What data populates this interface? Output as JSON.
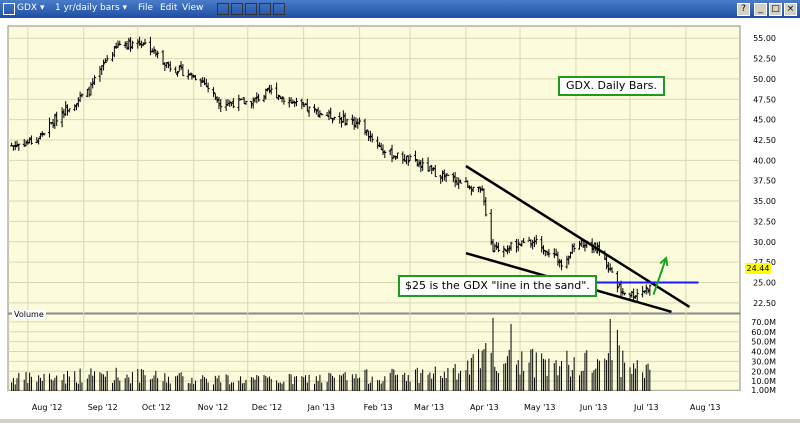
{
  "toolbar": {
    "symbol": "GDX",
    "timeframe": "1 yr/daily bars",
    "menu": [
      "File",
      "Edit",
      "View"
    ]
  },
  "annotations": {
    "title_box": "GDX.  Daily Bars.",
    "note_box": "$25 is the GDX \"line in the sand\"."
  },
  "volume_label": "Volume",
  "price_badge": "24.44",
  "colors": {
    "bg": "#fcfcdc",
    "bars": "#000000",
    "hline": "#1a1aff",
    "arrow": "#17a31e",
    "badge": "#ffff00"
  },
  "chart_data": {
    "type": "ohlc",
    "price_axis": {
      "min": 21.25,
      "max": 56.5,
      "ticks": [
        22.5,
        25.0,
        27.5,
        30.0,
        32.5,
        35.0,
        37.5,
        40.0,
        42.5,
        45.0,
        47.5,
        50.0,
        52.5,
        55.0
      ],
      "tick_labels": [
        "22.50",
        "25.00",
        "27.50",
        "30.00",
        "32.50",
        "35.00",
        "37.50",
        "40.00",
        "42.50",
        "45.00",
        "47.50",
        "50.00",
        "52.50",
        "55.00"
      ]
    },
    "volume_axis": {
      "min": 0,
      "max": 78,
      "ticks": [
        1,
        10,
        20,
        30,
        40,
        50,
        60,
        70
      ],
      "tick_labels": [
        "1.00M",
        "10.0M",
        "20.0M",
        "30.0M",
        "40.0M",
        "50.0M",
        "60.0M",
        "70.0M"
      ]
    },
    "x_axis": {
      "start": "2012-07-21",
      "end": "2013-08-31",
      "labels": [
        {
          "date": "2012-08-01",
          "text": "Aug '12"
        },
        {
          "date": "2012-09-01",
          "text": "Sep '12"
        },
        {
          "date": "2012-10-01",
          "text": "Oct '12"
        },
        {
          "date": "2012-11-01",
          "text": "Nov '12"
        },
        {
          "date": "2012-12-01",
          "text": "Dec '12"
        },
        {
          "date": "2013-01-01",
          "text": "Jan '13"
        },
        {
          "date": "2013-02-01",
          "text": "Feb '13"
        },
        {
          "date": "2013-03-01",
          "text": "Mar '13"
        },
        {
          "date": "2013-04-01",
          "text": "Apr '13"
        },
        {
          "date": "2013-05-01",
          "text": "May '13"
        },
        {
          "date": "2013-06-01",
          "text": "Jun '13"
        },
        {
          "date": "2013-07-01",
          "text": "Jul '13"
        },
        {
          "date": "2013-08-01",
          "text": "Aug '13"
        }
      ]
    },
    "price_waypoints": [
      [
        "2012-07-23",
        41.8
      ],
      [
        "2012-08-06",
        42.5
      ],
      [
        "2012-08-20",
        46.0
      ],
      [
        "2012-09-04",
        48.5
      ],
      [
        "2012-09-14",
        52.5
      ],
      [
        "2012-09-21",
        54.3
      ],
      [
        "2012-10-04",
        54.5
      ],
      [
        "2012-10-19",
        51.5
      ],
      [
        "2012-11-05",
        50.0
      ],
      [
        "2012-11-16",
        47.0
      ],
      [
        "2012-12-03",
        47.2
      ],
      [
        "2012-12-14",
        48.5
      ],
      [
        "2012-12-31",
        46.5
      ],
      [
        "2013-01-15",
        45.5
      ],
      [
        "2013-02-01",
        44.5
      ],
      [
        "2013-02-15",
        41.0
      ],
      [
        "2013-03-01",
        40.0
      ],
      [
        "2013-03-15",
        38.5
      ],
      [
        "2013-04-02",
        37.0
      ],
      [
        "2013-04-10",
        36.0
      ],
      [
        "2013-04-16",
        29.0
      ],
      [
        "2013-04-26",
        29.5
      ],
      [
        "2013-05-10",
        30.0
      ],
      [
        "2013-05-24",
        27.5
      ],
      [
        "2013-06-03",
        30.0
      ],
      [
        "2013-06-14",
        29.0
      ],
      [
        "2013-06-26",
        24.0
      ],
      [
        "2013-07-03",
        23.5
      ],
      [
        "2013-07-12",
        24.4
      ]
    ],
    "volume_waypoints": [
      [
        "2012-07-23",
        14
      ],
      [
        "2012-09-14",
        20
      ],
      [
        "2012-10-15",
        16
      ],
      [
        "2012-12-15",
        13
      ],
      [
        "2013-02-15",
        18
      ],
      [
        "2013-03-29",
        22
      ],
      [
        "2013-04-16",
        45
      ],
      [
        "2013-05-15",
        30
      ],
      [
        "2013-06-20",
        40
      ],
      [
        "2013-07-12",
        22
      ]
    ],
    "volume_spikes": [
      [
        "2013-04-16",
        74
      ],
      [
        "2013-04-26",
        68
      ],
      [
        "2013-06-20",
        73
      ],
      [
        "2013-06-24",
        62
      ]
    ],
    "trendlines": [
      {
        "type": "resistance",
        "from": [
          "2013-04-01",
          39.3
        ],
        "to": [
          "2013-08-03",
          22.0
        ]
      },
      {
        "type": "support",
        "from": [
          "2013-04-01",
          28.6
        ],
        "to": [
          "2013-07-24",
          21.4
        ]
      },
      {
        "type": "level",
        "value": 25.0,
        "from": "2013-04-02",
        "to": "2013-08-08"
      }
    ],
    "arrow": {
      "from": [
        "2013-07-14",
        23.5
      ],
      "to": [
        "2013-07-21",
        28.0
      ]
    }
  }
}
